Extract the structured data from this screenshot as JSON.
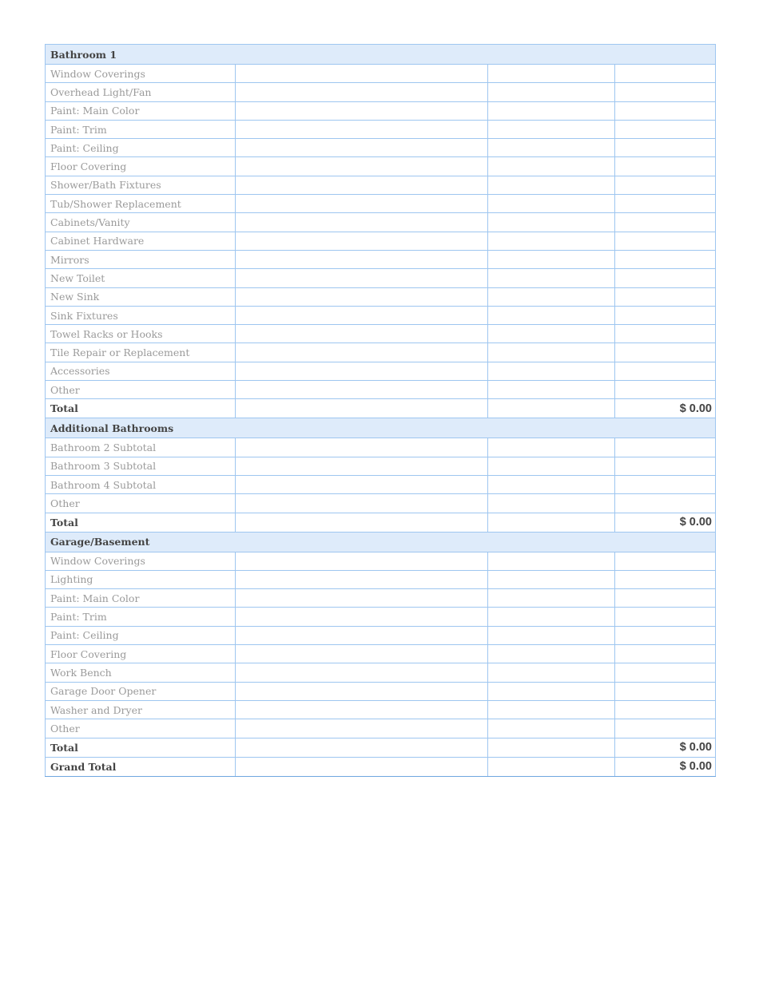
{
  "sections": [
    {
      "title": "Bathroom 1",
      "items": [
        "Window Coverings",
        "Overhead Light/Fan",
        "Paint: Main Color",
        "Paint: Trim",
        "Paint: Ceiling",
        "Floor Covering",
        "Shower/Bath Fixtures",
        "Tub/Shower Replacement",
        "Cabinets/Vanity",
        "Cabinet Hardware",
        "Mirrors",
        "New Toilet",
        "New Sink",
        "Sink Fixtures",
        "Towel Racks or Hooks",
        "Tile Repair or Replacement",
        "Accessories",
        "Other"
      ],
      "total_label": "Total",
      "total_value": "$ 0.00"
    },
    {
      "title": "Additional Bathrooms",
      "items": [
        "Bathroom 2 Subtotal",
        "Bathroom 3 Subtotal",
        "Bathroom 4 Subtotal",
        "Other"
      ],
      "total_label": "Total",
      "total_value": "$ 0.00"
    },
    {
      "title": "Garage/Basement",
      "items": [
        "Window Coverings",
        "Lighting",
        "Paint: Main Color",
        "Paint: Trim",
        "Paint: Ceiling",
        "Floor Covering",
        "Work Bench",
        "Garage Door Opener",
        "Washer and Dryer",
        "Other"
      ],
      "total_label": "Total",
      "total_value": "$ 0.00"
    }
  ],
  "grand_total": {
    "label": "Grand Total",
    "value": "$ 0.00"
  },
  "colors": {
    "border": "#9ec6f0",
    "section_bg": "#deebfa"
  }
}
